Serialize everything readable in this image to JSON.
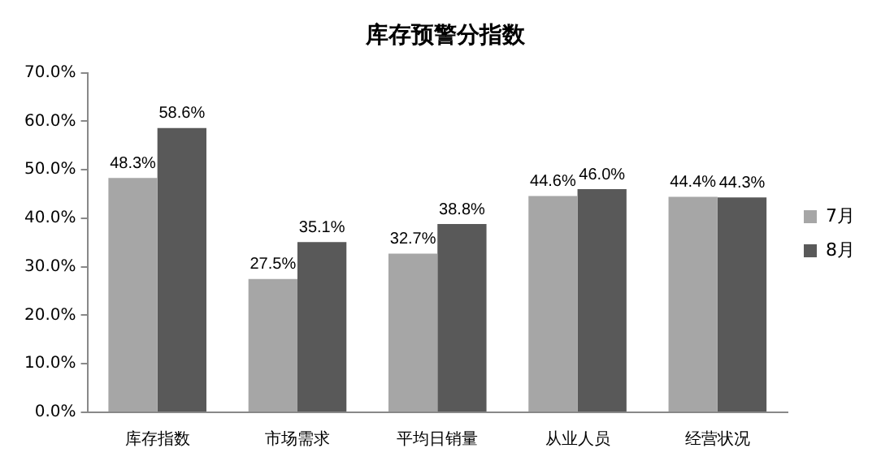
{
  "chart_data": {
    "type": "bar",
    "title": "库存预警分指数",
    "categories": [
      "库存指数",
      "市场需求",
      "平均日销量",
      "从业人员",
      "经营状况"
    ],
    "series": [
      {
        "name": "7月",
        "color": "#a6a6a6",
        "values": [
          48.3,
          27.5,
          32.7,
          44.6,
          44.4
        ],
        "value_labels": [
          "48.3%",
          "27.5%",
          "32.7%",
          "44.6%",
          "44.4%"
        ]
      },
      {
        "name": "8月",
        "color": "#595959",
        "values": [
          58.6,
          35.1,
          38.8,
          46.0,
          44.3
        ],
        "value_labels": [
          "58.6%",
          "35.1%",
          "38.8%",
          "46.0%",
          "44.3%"
        ]
      }
    ],
    "ylim": [
      0,
      70
    ],
    "yticks": [
      {
        "value": 0,
        "label": "0.0%"
      },
      {
        "value": 10,
        "label": "10.0%"
      },
      {
        "value": 20,
        "label": "20.0%"
      },
      {
        "value": 30,
        "label": "30.0%"
      },
      {
        "value": 40,
        "label": "40.0%"
      },
      {
        "value": 50,
        "label": "50.0%"
      },
      {
        "value": 60,
        "label": "60.0%"
      },
      {
        "value": 70,
        "label": "70.0%"
      }
    ],
    "grid": false,
    "legend": "right"
  }
}
